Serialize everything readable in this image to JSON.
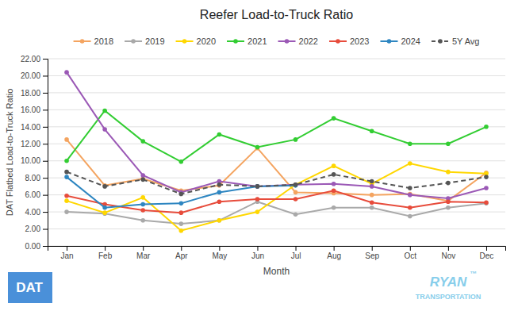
{
  "chart_data": {
    "type": "line",
    "title": "Reefer Load-to-Truck Ratio",
    "xlabel": "Month",
    "ylabel": "DAT Flatbed Load-to-Truck Ratio",
    "categories": [
      "Jan",
      "Feb",
      "Mar",
      "Apr",
      "May",
      "Jun",
      "Jul",
      "Aug",
      "Sep",
      "Oct",
      "Nov",
      "Dec"
    ],
    "series": [
      {
        "name": "2018",
        "color": "#F4A460",
        "marker": "circle",
        "line_style": "solid",
        "values": [
          12.5,
          7.1,
          7.9,
          6.5,
          7.1,
          11.5,
          6.3,
          6.2,
          6.0,
          6.1,
          5.3,
          8.6
        ]
      },
      {
        "name": "2019",
        "color": "#A9A9A9",
        "marker": "circle",
        "line_style": "solid",
        "values": [
          4.0,
          3.8,
          3.0,
          2.6,
          3.0,
          5.2,
          3.7,
          4.5,
          4.5,
          3.5,
          4.5,
          5.0
        ]
      },
      {
        "name": "2020",
        "color": "#FFD700",
        "marker": "circle",
        "line_style": "solid",
        "values": [
          5.3,
          3.9,
          5.7,
          1.8,
          3.0,
          4.0,
          7.2,
          9.4,
          7.3,
          9.7,
          8.7,
          8.5
        ]
      },
      {
        "name": "2021",
        "color": "#32CD32",
        "marker": "circle",
        "line_style": "solid",
        "values": [
          10.0,
          15.9,
          12.3,
          9.9,
          13.1,
          11.6,
          12.5,
          15.0,
          13.5,
          12.0,
          12.0,
          14.0
        ]
      },
      {
        "name": "2022",
        "color": "#9B59B6",
        "marker": "circle",
        "line_style": "solid",
        "values": [
          20.4,
          13.7,
          8.3,
          6.3,
          7.6,
          7.0,
          7.2,
          7.3,
          7.0,
          6.0,
          5.6,
          6.8
        ]
      },
      {
        "name": "2023",
        "color": "#E74C3C",
        "marker": "circle",
        "line_style": "solid",
        "values": [
          5.9,
          4.9,
          4.2,
          3.9,
          5.2,
          5.5,
          5.5,
          6.5,
          5.1,
          4.5,
          5.2,
          5.1
        ]
      },
      {
        "name": "2024",
        "color": "#2E86C1",
        "marker": "circle",
        "line_style": "solid",
        "values": [
          8.1,
          4.5,
          4.9,
          5.0,
          6.3,
          7.0,
          7.1,
          null,
          null,
          null,
          null,
          null
        ]
      },
      {
        "name": "5Y Avg",
        "color": "#555555",
        "marker": "circle",
        "line_style": "dashed",
        "values": [
          8.7,
          7.0,
          7.8,
          6.1,
          7.2,
          7.0,
          7.2,
          8.4,
          7.6,
          6.8,
          7.4,
          8.1
        ]
      }
    ],
    "ylim": [
      0.0,
      22.0
    ],
    "yticks": [
      {
        "value": 0,
        "label": "0.00"
      },
      {
        "value": 2,
        "label": "2.00"
      },
      {
        "value": 4,
        "label": "4.00"
      },
      {
        "value": 6,
        "label": "6.00"
      },
      {
        "value": 8,
        "label": "8.00"
      },
      {
        "value": 10,
        "label": "10.00"
      },
      {
        "value": 12,
        "label": "12.00"
      },
      {
        "value": 14,
        "label": "14.00"
      },
      {
        "value": 16,
        "label": "16.00"
      },
      {
        "value": 18,
        "label": "18.00"
      },
      {
        "value": 20,
        "label": "20.00"
      },
      {
        "value": 22,
        "label": "22.00"
      }
    ],
    "grid": true,
    "legend": "top",
    "annotations": [
      "DAT",
      "RYAN",
      "™",
      "TRANSPORTATION"
    ]
  }
}
